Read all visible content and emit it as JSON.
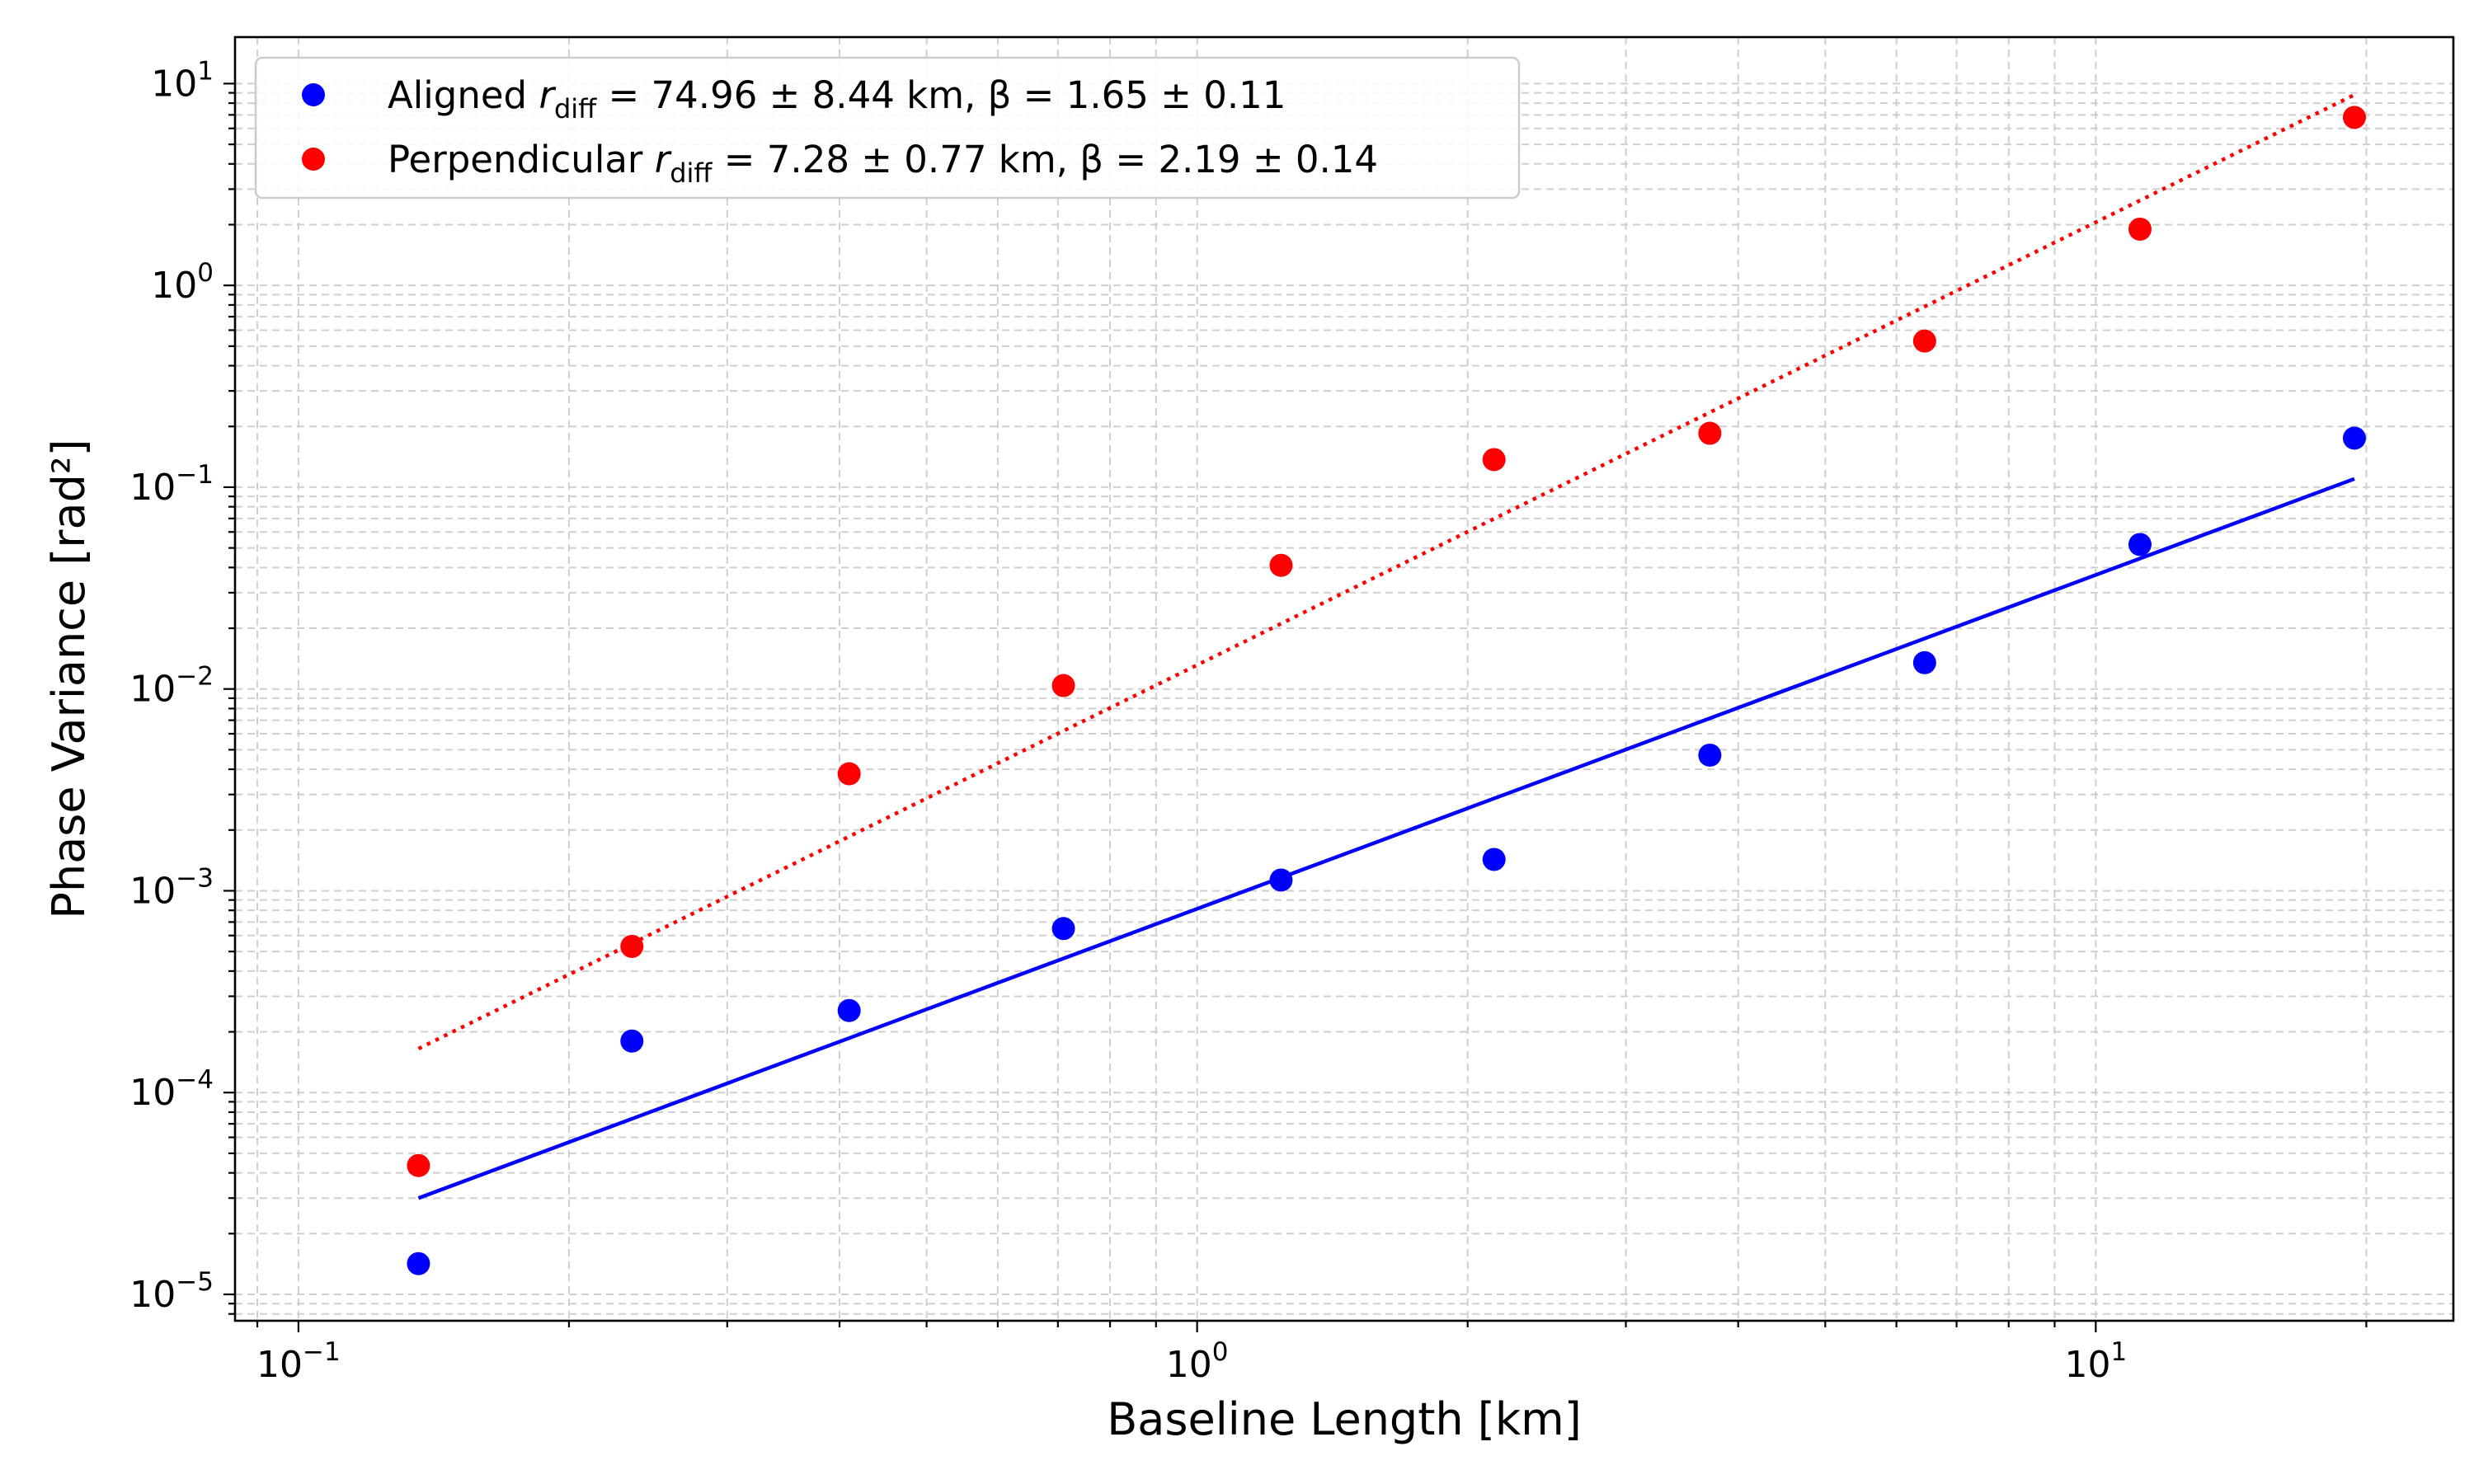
{
  "chart_data": {
    "type": "scatter",
    "xlabel": "Baseline Length [km]",
    "ylabel": "Phase Variance [rad²]",
    "xscale": "log",
    "yscale": "log",
    "xlim": [
      0.085,
      25
    ],
    "ylim": [
      7.4e-06,
      17
    ],
    "grid": true,
    "legend_position": "top-left",
    "x_ticks": [
      {
        "value": 0.1,
        "mantissa": "10",
        "exponent": "−1"
      },
      {
        "value": 1,
        "mantissa": "10",
        "exponent": "0"
      },
      {
        "value": 10,
        "mantissa": "10",
        "exponent": "1"
      }
    ],
    "y_ticks": [
      {
        "value": 1e-05,
        "mantissa": "10",
        "exponent": "−5"
      },
      {
        "value": 0.0001,
        "mantissa": "10",
        "exponent": "−4"
      },
      {
        "value": 0.001,
        "mantissa": "10",
        "exponent": "−3"
      },
      {
        "value": 0.01,
        "mantissa": "10",
        "exponent": "−2"
      },
      {
        "value": 0.1,
        "mantissa": "10",
        "exponent": "−1"
      },
      {
        "value": 1,
        "mantissa": "10",
        "exponent": "0"
      },
      {
        "value": 10,
        "mantissa": "10",
        "exponent": "1"
      }
    ],
    "series": [
      {
        "name": "Aligned",
        "legend_prefix": "Aligned ",
        "legend_suffix": " = 74.96 ± 8.44 km,  β = 1.65 ± 0.11",
        "color": "#0000ff",
        "x": [
          0.136,
          0.235,
          0.41,
          0.71,
          1.24,
          2.14,
          3.72,
          6.45,
          11.2,
          19.4
        ],
        "y": [
          1.42e-05,
          0.00018,
          0.000255,
          0.00065,
          0.00113,
          0.00143,
          0.0047,
          0.0135,
          0.052,
          0.175
        ],
        "fit": {
          "style": "solid",
          "x": [
            0.136,
            19.4
          ],
          "y": [
            3e-05,
            0.11
          ]
        }
      },
      {
        "name": "Perpendicular",
        "legend_prefix": "Perpendicular ",
        "legend_suffix": " = 7.28 ± 0.77 km,  β = 2.19 ± 0.14",
        "color": "#ff0000",
        "x": [
          0.136,
          0.235,
          0.41,
          0.71,
          1.24,
          2.14,
          3.72,
          6.45,
          11.2,
          19.4
        ],
        "y": [
          4.35e-05,
          0.00053,
          0.0038,
          0.0104,
          0.041,
          0.137,
          0.185,
          0.53,
          1.9,
          6.8
        ],
        "fit": {
          "style": "dotted",
          "x": [
            0.136,
            19.4
          ],
          "y": [
            0.000165,
            8.8
          ]
        }
      }
    ],
    "legend_symbol": "r",
    "legend_subscript": "diff"
  }
}
